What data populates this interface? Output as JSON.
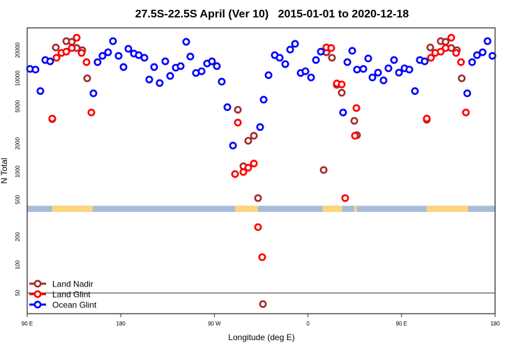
{
  "chart_data": {
    "type": "scatter",
    "title": "27.5S-22.5S April (Ver 10)   2015-01-01 to 2020-12-18",
    "xlabel": "Longitude (deg E)",
    "ylabel": "N Total",
    "xscale": "linear (unwrapped degrees east)",
    "yscale": "log",
    "xlim": [
      90,
      540
    ],
    "ylim": [
      30,
      34700
    ],
    "x_ticks": [
      {
        "value": 90,
        "label": "90 E"
      },
      {
        "value": 180,
        "label": "180"
      },
      {
        "value": 270,
        "label": "90 W"
      },
      {
        "value": 360,
        "label": "0"
      },
      {
        "value": 450,
        "label": "90 E"
      },
      {
        "value": 540,
        "label": "180"
      }
    ],
    "y_ticks": [
      {
        "value": 50,
        "label": "50"
      },
      {
        "value": 100,
        "label": "100"
      },
      {
        "value": 200,
        "label": "200"
      },
      {
        "value": 500,
        "label": "500"
      },
      {
        "value": 1000,
        "label": "1000"
      },
      {
        "value": 2000,
        "label": "2000"
      },
      {
        "value": 5000,
        "label": "5000"
      },
      {
        "value": 10000,
        "label": "10000"
      },
      {
        "value": 20000,
        "label": "20000"
      }
    ],
    "reference_line": 50,
    "legend_position": "bottom-left",
    "land_mask": {
      "band_value_range": [
        370,
        430
      ],
      "ocean_color": "#a7bcd9",
      "land_color": "#fdd57a",
      "land_segments": [
        [
          114,
          153
        ],
        [
          290,
          312
        ],
        [
          374,
          393
        ],
        [
          404.5,
          407
        ],
        [
          474,
          514
        ]
      ]
    },
    "series": [
      {
        "name": "Land Nadir",
        "color": "#a52a2a",
        "points": [
          [
            114.1,
            3650
          ],
          [
            117.5,
            21400
          ],
          [
            127.6,
            25000
          ],
          [
            132.9,
            24600
          ],
          [
            137.6,
            21100
          ],
          [
            143,
            20000
          ],
          [
            147.7,
            10000
          ],
          [
            292.6,
            4600
          ],
          [
            302.6,
            2140
          ],
          [
            308,
            2420
          ],
          [
            297.9,
            1140
          ],
          [
            312,
            520
          ],
          [
            316.7,
            38
          ],
          [
            375.1,
            1040
          ],
          [
            377.7,
            19000
          ],
          [
            383.1,
            16600
          ],
          [
            387.8,
            8500
          ],
          [
            392.5,
            7000
          ],
          [
            404.6,
            3500
          ],
          [
            407.2,
            2460
          ],
          [
            474.3,
            3600
          ],
          [
            477.7,
            21400
          ],
          [
            487.7,
            25000
          ],
          [
            492.4,
            24600
          ],
          [
            497.8,
            21100
          ],
          [
            503.2,
            20000
          ],
          [
            507.9,
            10000
          ]
        ]
      },
      {
        "name": "Land Glint",
        "color": "#ff0000",
        "points": [
          [
            114.1,
            3700
          ],
          [
            118.2,
            16600
          ],
          [
            122.9,
            18700
          ],
          [
            127.6,
            19300
          ],
          [
            132.9,
            21100
          ],
          [
            137.6,
            27200
          ],
          [
            142.3,
            18700
          ],
          [
            147,
            14900
          ],
          [
            151.7,
            4300
          ],
          [
            292.6,
            3350
          ],
          [
            289.9,
            940
          ],
          [
            297.9,
            990
          ],
          [
            302.6,
            1100
          ],
          [
            308,
            1220
          ],
          [
            312,
            254
          ],
          [
            316,
            121
          ],
          [
            377.7,
            21400
          ],
          [
            382.4,
            21100
          ],
          [
            387.8,
            8800
          ],
          [
            392.5,
            8600
          ],
          [
            395.8,
            520
          ],
          [
            406.6,
            4800
          ],
          [
            405.2,
            2420
          ],
          [
            474.3,
            3700
          ],
          [
            478.3,
            16600
          ],
          [
            482.4,
            18700
          ],
          [
            487.7,
            19300
          ],
          [
            492.4,
            21100
          ],
          [
            497.8,
            27200
          ],
          [
            502.5,
            18700
          ],
          [
            507.2,
            14900
          ],
          [
            511.9,
            4300
          ]
        ]
      },
      {
        "name": "Ocean Glint",
        "color": "#0000ff",
        "points": [
          [
            92.7,
            12600
          ],
          [
            98,
            12400
          ],
          [
            102.7,
            7300
          ],
          [
            107.4,
            15700
          ],
          [
            112.1,
            15200
          ],
          [
            153.7,
            6900
          ],
          [
            157.7,
            14900
          ],
          [
            162.4,
            17400
          ],
          [
            167.8,
            19000
          ],
          [
            172.5,
            25000
          ],
          [
            177.9,
            17400
          ],
          [
            182.6,
            13200
          ],
          [
            187.3,
            20700
          ],
          [
            192.6,
            18400
          ],
          [
            197.3,
            17700
          ],
          [
            202.7,
            16600
          ],
          [
            207.4,
            9700
          ],
          [
            212.1,
            13200
          ],
          [
            217.4,
            8900
          ],
          [
            222.8,
            15200
          ],
          [
            227.5,
            10600
          ],
          [
            232.9,
            13000
          ],
          [
            237.6,
            13500
          ],
          [
            242.9,
            24600
          ],
          [
            246.9,
            17100
          ],
          [
            252.3,
            11400
          ],
          [
            257.7,
            11900
          ],
          [
            263,
            14400
          ],
          [
            267.7,
            15200
          ],
          [
            272.4,
            13500
          ],
          [
            277.1,
            9200
          ],
          [
            282.5,
            4900
          ],
          [
            287.9,
            1900
          ],
          [
            314,
            3000
          ],
          [
            317.4,
            5900
          ],
          [
            322.1,
            10800
          ],
          [
            328.1,
            17700
          ],
          [
            332.8,
            16600
          ],
          [
            338.2,
            14200
          ],
          [
            342.9,
            20300
          ],
          [
            347.6,
            23400
          ],
          [
            353,
            11400
          ],
          [
            357.6,
            11900
          ],
          [
            363,
            10200
          ],
          [
            367.7,
            15700
          ],
          [
            372.4,
            19300
          ],
          [
            393.8,
            4300
          ],
          [
            397.9,
            14900
          ],
          [
            402.6,
            19700
          ],
          [
            407.2,
            12400
          ],
          [
            413.3,
            12600
          ],
          [
            418,
            16300
          ],
          [
            422,
            10200
          ],
          [
            427.4,
            11500
          ],
          [
            432.7,
            9500
          ],
          [
            437.4,
            12800
          ],
          [
            442.8,
            15700
          ],
          [
            447.5,
            11500
          ],
          [
            452.9,
            12800
          ],
          [
            457.5,
            12400
          ],
          [
            462.9,
            7300
          ],
          [
            467.6,
            15700
          ],
          [
            472.3,
            15200
          ],
          [
            513.2,
            6900
          ],
          [
            517.9,
            14900
          ],
          [
            522.6,
            17700
          ],
          [
            528,
            19000
          ],
          [
            532.7,
            25000
          ],
          [
            537.4,
            17400
          ]
        ]
      }
    ]
  }
}
